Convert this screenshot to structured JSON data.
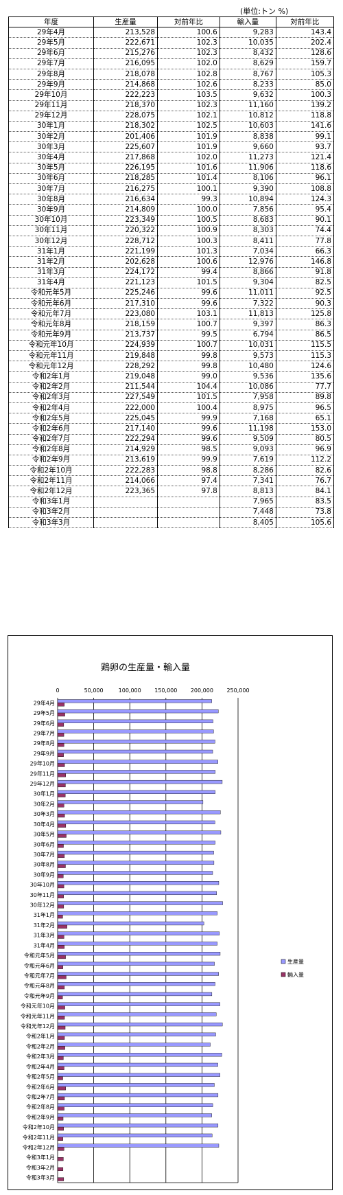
{
  "unit_note": "(単位:トン %)",
  "table": {
    "headers": [
      "年度",
      "生産量",
      "対前年比",
      "輸入量",
      "対前年比"
    ],
    "rows": [
      [
        "29年4月",
        "213,528",
        "100.6",
        "9,283",
        "143.4"
      ],
      [
        "29年5月",
        "222,671",
        "102.3",
        "10,035",
        "202.4"
      ],
      [
        "29年6月",
        "215,276",
        "102.3",
        "8,432",
        "128.6"
      ],
      [
        "29年7月",
        "216,095",
        "102.0",
        "8,629",
        "159.7"
      ],
      [
        "29年8月",
        "218,078",
        "102.8",
        "8,767",
        "105.3"
      ],
      [
        "29年9月",
        "214,868",
        "102.6",
        "8,233",
        "85.0"
      ],
      [
        "29年10月",
        "222,223",
        "103.5",
        "9,632",
        "100.3"
      ],
      [
        "29年11月",
        "218,370",
        "102.3",
        "11,160",
        "139.2"
      ],
      [
        "29年12月",
        "228,075",
        "102.1",
        "10,812",
        "118.8"
      ],
      [
        "30年1月",
        "218,302",
        "102.5",
        "10,603",
        "141.6"
      ],
      [
        "30年2月",
        "201,406",
        "101.9",
        "8,838",
        "99.1"
      ],
      [
        "30年3月",
        "225,607",
        "101.9",
        "9,660",
        "93.7"
      ],
      [
        "30年4月",
        "217,868",
        "102.0",
        "11,273",
        "121.4"
      ],
      [
        "30年5月",
        "226,195",
        "101.6",
        "11,906",
        "118.6"
      ],
      [
        "30年6月",
        "218,285",
        "101.4",
        "8,106",
        "96.1"
      ],
      [
        "30年7月",
        "216,275",
        "100.1",
        "9,390",
        "108.8"
      ],
      [
        "30年8月",
        "216,634",
        "99.3",
        "10,894",
        "124.3"
      ],
      [
        "30年9月",
        "214,809",
        "100.0",
        "7,856",
        "95.4"
      ],
      [
        "30年10月",
        "223,349",
        "100.5",
        "8,683",
        "90.1"
      ],
      [
        "30年11月",
        "220,322",
        "100.9",
        "8,303",
        "74.4"
      ],
      [
        "30年12月",
        "228,712",
        "100.3",
        "8,411",
        "77.8"
      ],
      [
        "31年1月",
        "221,199",
        "101.3",
        "7,034",
        "66.3"
      ],
      [
        "31年2月",
        "202,628",
        "100.6",
        "12,976",
        "146.8"
      ],
      [
        "31年3月",
        "224,172",
        "99.4",
        "8,866",
        "91.8"
      ],
      [
        "31年4月",
        "221,123",
        "101.5",
        "9,304",
        "82.5"
      ],
      [
        "令和元年5月",
        "225,246",
        "99.6",
        "11,011",
        "92.5"
      ],
      [
        "令和元年6月",
        "217,310",
        "99.6",
        "7,322",
        "90.3"
      ],
      [
        "令和元年7月",
        "223,080",
        "103.1",
        "11,813",
        "125.8"
      ],
      [
        "令和元年8月",
        "218,159",
        "100.7",
        "9,397",
        "86.3"
      ],
      [
        "令和元年9月",
        "213,737",
        "99.5",
        "6,794",
        "86.5"
      ],
      [
        "令和元年10月",
        "224,939",
        "100.7",
        "10,031",
        "115.5"
      ],
      [
        "令和元年11月",
        "219,848",
        "99.8",
        "9,573",
        "115.3"
      ],
      [
        "令和元年12月",
        "228,292",
        "99.8",
        "10,480",
        "124.6"
      ],
      [
        "令和2年1月",
        "219,048",
        "99.0",
        "9,536",
        "135.6"
      ],
      [
        "令和2年2月",
        "211,544",
        "104.4",
        "10,086",
        "77.7"
      ],
      [
        "令和2年3月",
        "227,549",
        "101.5",
        "7,958",
        "89.8"
      ],
      [
        "令和2年4月",
        "222,000",
        "100.4",
        "8,975",
        "96.5"
      ],
      [
        "令和2年5月",
        "225,045",
        "99.9",
        "7,168",
        "65.1"
      ],
      [
        "令和2年6月",
        "217,140",
        "99.6",
        "11,198",
        "153.0"
      ],
      [
        "令和2年7月",
        "222,294",
        "99.6",
        "9,509",
        "80.5"
      ],
      [
        "令和2年8月",
        "214,929",
        "98.5",
        "9,093",
        "96.9"
      ],
      [
        "令和2年9月",
        "213,619",
        "99.9",
        "7,619",
        "112.2"
      ],
      [
        "令和2年10月",
        "222,283",
        "98.8",
        "8,286",
        "82.6"
      ],
      [
        "令和2年11月",
        "214,066",
        "97.4",
        "7,341",
        "76.7"
      ],
      [
        "令和2年12月",
        "223,365",
        "97.8",
        "8,813",
        "84.1"
      ],
      [
        "令和3年1月",
        "",
        "",
        "7,965",
        "83.5"
      ],
      [
        "令和3年2月",
        "",
        "",
        "7,448",
        "73.8"
      ],
      [
        "令和3年3月",
        "",
        "",
        "8,405",
        "105.6"
      ]
    ]
  },
  "chart_data": {
    "type": "bar",
    "orientation": "horizontal",
    "title": "鶏卵の生産量・輸入量",
    "xlabel": "",
    "ylabel": "",
    "xlim": [
      0,
      250000
    ],
    "x_ticks": [
      "0",
      "50,000",
      "100,000",
      "150,000",
      "200,000",
      "250,000"
    ],
    "grid": true,
    "legend": "right",
    "categories": [
      "29年4月",
      "29年5月",
      "29年6月",
      "29年7月",
      "29年8月",
      "29年9月",
      "29年10月",
      "29年11月",
      "29年12月",
      "30年1月",
      "30年2月",
      "30年3月",
      "30年4月",
      "30年5月",
      "30年6月",
      "30年7月",
      "30年8月",
      "30年9月",
      "30年10月",
      "30年11月",
      "30年12月",
      "31年1月",
      "31年2月",
      "31年3月",
      "31年4月",
      "令和元年5月",
      "令和元年6月",
      "令和元年7月",
      "令和元年8月",
      "令和元年9月",
      "令和元年10月",
      "令和元年11月",
      "令和元年12月",
      "令和2年1月",
      "令和2年2月",
      "令和2年3月",
      "令和2年4月",
      "令和2年5月",
      "令和2年6月",
      "令和2年7月",
      "令和2年8月",
      "令和2年9月",
      "令和2年10月",
      "令和2年11月",
      "令和2年12月",
      "令和3年1月",
      "令和3年2月",
      "令和3年3月"
    ],
    "series": [
      {
        "name": "生産量",
        "color": "#9999ff",
        "values": [
          213528,
          222671,
          215276,
          216095,
          218078,
          214868,
          222223,
          218370,
          228075,
          218302,
          201406,
          225607,
          217868,
          226195,
          218285,
          216275,
          216634,
          214809,
          223349,
          220322,
          228712,
          221199,
          202628,
          224172,
          221123,
          225246,
          217310,
          223080,
          218159,
          213737,
          224939,
          219848,
          228292,
          219048,
          211544,
          227549,
          222000,
          225045,
          217140,
          222294,
          214929,
          213619,
          222283,
          214066,
          223365,
          null,
          null,
          null
        ]
      },
      {
        "name": "輸入量",
        "color": "#993366",
        "values": [
          9283,
          10035,
          8432,
          8629,
          8767,
          8233,
          9632,
          11160,
          10812,
          10603,
          8838,
          9660,
          11273,
          11906,
          8106,
          9390,
          10894,
          7856,
          8683,
          8303,
          8411,
          7034,
          12976,
          8866,
          9304,
          11011,
          7322,
          11813,
          9397,
          6794,
          10031,
          9573,
          10480,
          9536,
          10086,
          7958,
          8975,
          7168,
          11198,
          9509,
          9093,
          7619,
          8286,
          7341,
          8813,
          7965,
          7448,
          8405
        ]
      }
    ]
  }
}
